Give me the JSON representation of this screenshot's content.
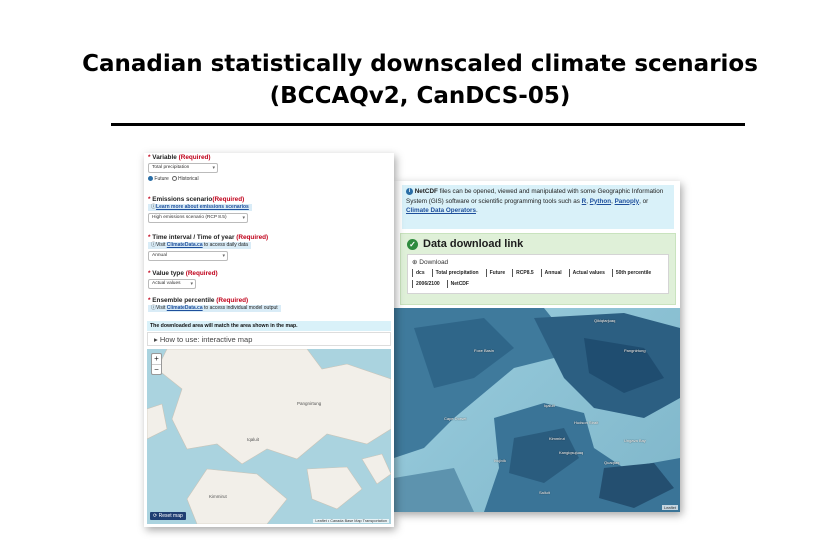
{
  "slide": {
    "title_line1": "Canadian statistically downscaled climate scenarios",
    "title_line2": "(BCCAQv2, CanDCS-05)"
  },
  "form": {
    "variable": {
      "label": "Variable",
      "required": "(Required)",
      "value": "Total precipitation"
    },
    "period_options": {
      "future": "Future",
      "historical": "Historical",
      "selected": "Future"
    },
    "emissions": {
      "label": "Emissions scenario",
      "required": "(Required)",
      "help": "Learn more about emissions scenarios",
      "value": "High emissions scenario (RCP 8.5)"
    },
    "time_interval": {
      "label": "Time interval / Time of year",
      "required": "(Required)",
      "help_prefix": "Visit",
      "help_link": "ClimateData.ca",
      "help_suffix": "to access daily data",
      "value": "Annual"
    },
    "value_type": {
      "label": "Value type",
      "required": "(Required)",
      "value": "Actual values"
    },
    "percentile": {
      "label": "Ensemble percentile",
      "required": "(Required)",
      "help_prefix": "Visit",
      "help_link": "ClimateData.ca",
      "help_suffix": "to access individual model output"
    }
  },
  "map_left": {
    "notice": "The downloaded area will match the area shown in the map.",
    "howto": "How to use: interactive map",
    "zoom_in": "+",
    "zoom_out": "−",
    "reset": "Reset map",
    "attribution": "Leaflet • Canada Base Map Transportation",
    "places": [
      "Iqaluit",
      "Pangnirtung",
      "Kimmirut"
    ]
  },
  "info": {
    "netcdf_bold": "NetCDF",
    "netcdf_text": "files can be opened, viewed and manipulated with some Geographic Information System (GIS) software or scientific programming tools such as",
    "tool_r": "R",
    "tool_python": "Python",
    "tool_panoply": "Panoply",
    "or": "or",
    "tool_cdo": "Climate Data Operators"
  },
  "download": {
    "title": "Data download link",
    "label": "Download",
    "chips": [
      "dcs",
      "Total precipitation",
      "Future",
      "RCP8.5",
      "Annual",
      "Actual values",
      "50th percentile",
      "2006/2100",
      "NetCDF"
    ]
  },
  "map_right": {
    "attribution": "Leaflet",
    "places": [
      "Pangnirtung",
      "Qikiqtarjuaq",
      "Iqaluit",
      "Kimmirut",
      "Kangiqsujuaq",
      "Salluit",
      "Ivujivik",
      "Quaqtaq",
      "Cape Dorset",
      "Hudson Strait",
      "Ungava Bay",
      "Foxe Basin"
    ]
  },
  "colors": {
    "required": "#c0001a",
    "info_bg": "#d9f1f9",
    "success_bg": "#dff0d8",
    "link": "#1e4f9c"
  }
}
